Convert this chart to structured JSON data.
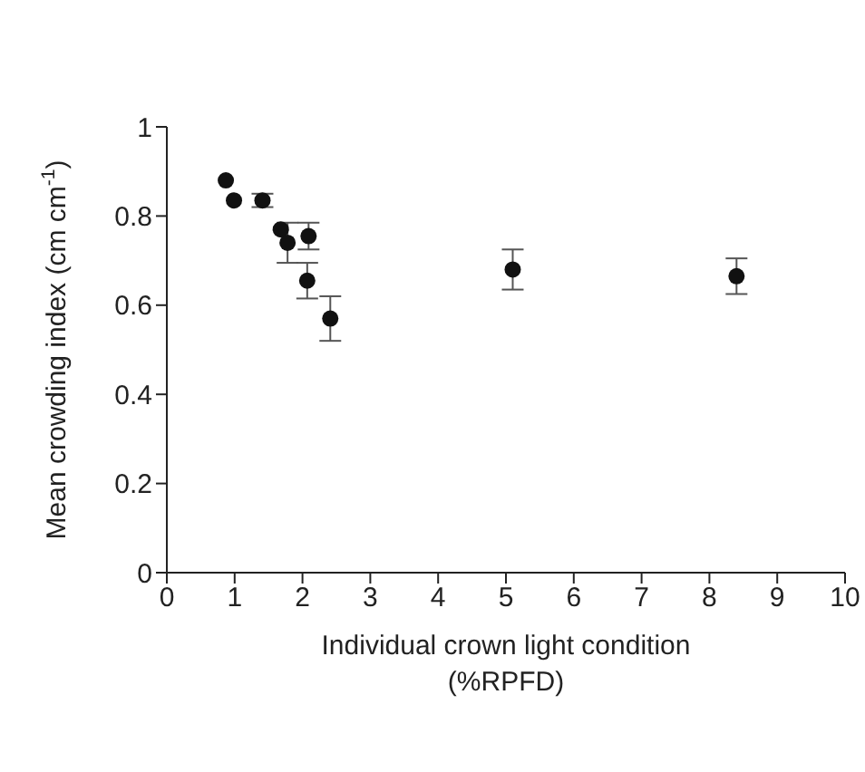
{
  "chart_data": {
    "type": "scatter",
    "xlabel": "Individual crown light condition\n(%RPFD)",
    "ylabel": "Mean crowding index (cm cm$^{-1}$)",
    "x": [
      0.87,
      0.99,
      1.41,
      1.68,
      1.78,
      2.09,
      2.07,
      2.41,
      5.1,
      8.4
    ],
    "values": [
      0.88,
      0.835,
      0.835,
      0.77,
      0.74,
      0.755,
      0.655,
      0.57,
      0.68,
      0.665
    ],
    "errors": [
      null,
      null,
      0.015,
      null,
      0.045,
      0.03,
      0.04,
      0.05,
      0.045,
      0.04
    ],
    "color": "#111111",
    "marker": "circle",
    "xlim": [
      0,
      10
    ],
    "xticks": [
      0,
      1,
      2,
      3,
      4,
      5,
      6,
      7,
      8,
      9,
      10
    ],
    "ylim": [
      0,
      1
    ],
    "yticks": [
      0,
      0.2,
      0.4,
      0.6,
      0.8,
      1
    ],
    "grid": false
  }
}
